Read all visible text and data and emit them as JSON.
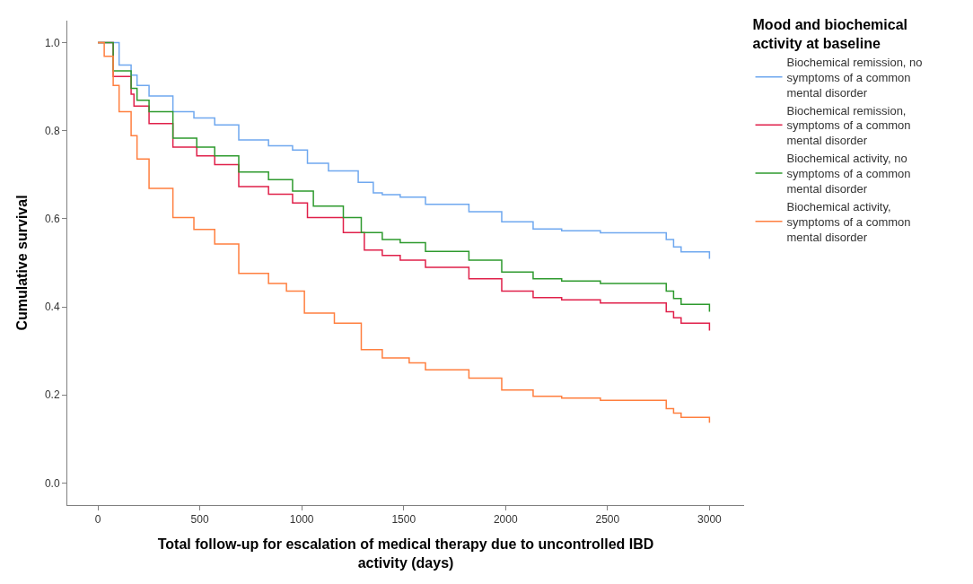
{
  "chart_data": {
    "type": "step",
    "xlabel": "Total follow-up for escalation of medical therapy due to uncontrolled IBD activity (days)",
    "ylabel": "Cumulative survival",
    "legend_title": "Mood and biochemical activity at baseline",
    "legend": "right",
    "marker": "none",
    "line_style": "solid",
    "xlim": [
      -150,
      3170
    ],
    "xticks": [
      0,
      500,
      1000,
      1500,
      2000,
      2500,
      3000
    ],
    "ylim": [
      -0.05,
      1.05
    ],
    "yticks": [
      {
        "value": 0,
        "label": "0.0"
      },
      {
        "value": 0.2,
        "label": "0.2"
      },
      {
        "value": 0.4,
        "label": "0.4"
      },
      {
        "value": 0.6,
        "label": "0.6"
      },
      {
        "value": 0.8,
        "label": "0.8"
      },
      {
        "value": 1,
        "label": "1.0"
      }
    ],
    "series": [
      {
        "name": "Biochemical remission, no symptoms of a common mental disorder",
        "color": "#6fa8ef",
        "x": [
          0,
          104,
          163,
          192,
          251,
          368,
          471,
          573,
          691,
          837,
          955,
          1028,
          1131,
          1277,
          1351,
          1395,
          1483,
          1607,
          1725,
          1820,
          1908,
          1981,
          2135,
          2275,
          2465,
          2788,
          2824,
          2861,
          2993,
          3000
        ],
        "values": [
          1.0,
          0.949,
          0.926,
          0.903,
          0.879,
          0.843,
          0.829,
          0.813,
          0.779,
          0.766,
          0.756,
          0.726,
          0.709,
          0.683,
          0.659,
          0.655,
          0.649,
          0.633,
          0.633,
          0.616,
          0.616,
          0.593,
          0.577,
          0.573,
          0.568,
          0.553,
          0.536,
          0.525,
          0.525,
          0.509
        ]
      },
      {
        "name": "Biochemical remission, symptoms of a common mental disorder",
        "color": "#e0204a",
        "x": [
          0,
          75,
          163,
          177,
          251,
          368,
          485,
          573,
          691,
          837,
          955,
          1028,
          1204,
          1307,
          1395,
          1483,
          1607,
          1725,
          1820,
          1908,
          1981,
          2135,
          2275,
          2465,
          2788,
          2824,
          2861,
          2993,
          3000
        ],
        "values": [
          1.0,
          0.923,
          0.883,
          0.856,
          0.816,
          0.763,
          0.743,
          0.723,
          0.673,
          0.656,
          0.636,
          0.603,
          0.569,
          0.529,
          0.517,
          0.506,
          0.49,
          0.49,
          0.464,
          0.464,
          0.436,
          0.421,
          0.416,
          0.409,
          0.389,
          0.375,
          0.363,
          0.363,
          0.346
        ]
      },
      {
        "name": "Biochemical activity, no symptoms of a common mental disorder",
        "color": "#2e9a2e",
        "x": [
          0,
          75,
          163,
          192,
          251,
          368,
          485,
          573,
          691,
          837,
          955,
          1057,
          1204,
          1292,
          1395,
          1483,
          1607,
          1725,
          1820,
          1908,
          1981,
          2135,
          2275,
          2465,
          2788,
          2824,
          2861,
          2993,
          3000
        ],
        "values": [
          1.0,
          0.936,
          0.896,
          0.869,
          0.843,
          0.783,
          0.763,
          0.743,
          0.706,
          0.689,
          0.663,
          0.629,
          0.603,
          0.569,
          0.553,
          0.546,
          0.526,
          0.526,
          0.506,
          0.506,
          0.479,
          0.464,
          0.459,
          0.453,
          0.436,
          0.419,
          0.406,
          0.406,
          0.389
        ]
      },
      {
        "name": "Biochemical activity, symptoms of a common mental disorder",
        "color": "#ff7f3f",
        "x": [
          0,
          31,
          75,
          104,
          163,
          192,
          251,
          368,
          471,
          573,
          691,
          837,
          925,
          1013,
          1160,
          1292,
          1395,
          1527,
          1607,
          1725,
          1820,
          1908,
          1981,
          2135,
          2275,
          2465,
          2788,
          2824,
          2861,
          2993,
          3000
        ],
        "values": [
          1.0,
          0.969,
          0.903,
          0.843,
          0.789,
          0.736,
          0.669,
          0.603,
          0.576,
          0.543,
          0.476,
          0.453,
          0.436,
          0.386,
          0.363,
          0.303,
          0.284,
          0.273,
          0.257,
          0.257,
          0.238,
          0.238,
          0.211,
          0.197,
          0.193,
          0.188,
          0.169,
          0.159,
          0.149,
          0.149,
          0.137
        ]
      }
    ]
  }
}
